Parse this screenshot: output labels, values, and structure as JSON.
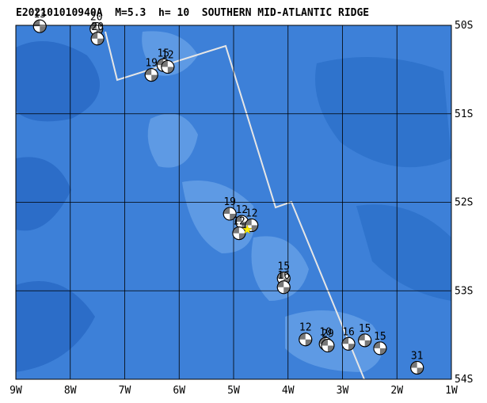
{
  "title": "E202101010940A  M=5.3  h= 10  SOUTHERN MID-ATLANTIC RIDGE",
  "map": {
    "xlim": [
      -9,
      -1
    ],
    "ylim": [
      -54,
      -50
    ],
    "xticks": [
      {
        "value": -9,
        "label": "9W"
      },
      {
        "value": -8,
        "label": "8W"
      },
      {
        "value": -7,
        "label": "7W"
      },
      {
        "value": -6,
        "label": "6W"
      },
      {
        "value": -5,
        "label": "5W"
      },
      {
        "value": -4,
        "label": "4W"
      },
      {
        "value": -3,
        "label": "3W"
      },
      {
        "value": -2,
        "label": "2W"
      },
      {
        "value": -1,
        "label": "1W"
      }
    ],
    "yticks": [
      {
        "value": -50,
        "label": "50S"
      },
      {
        "value": -51,
        "label": "51S"
      },
      {
        "value": -52,
        "label": "52S"
      },
      {
        "value": -53,
        "label": "53S"
      },
      {
        "value": -54,
        "label": "54S"
      }
    ],
    "events": [
      {
        "lon": -8.56,
        "lat": -50.01,
        "depth": 13
      },
      {
        "lon": -7.52,
        "lat": -50.04,
        "depth": 20
      },
      {
        "lon": -7.5,
        "lat": -50.15,
        "depth": 20
      },
      {
        "lon": -6.51,
        "lat": -50.56,
        "depth": 19
      },
      {
        "lon": -6.29,
        "lat": -50.45,
        "depth": 15
      },
      {
        "lon": -6.21,
        "lat": -50.47,
        "depth": 12
      },
      {
        "lon": -5.07,
        "lat": -52.13,
        "depth": 19
      },
      {
        "lon": -4.85,
        "lat": -52.22,
        "depth": 12
      },
      {
        "lon": -4.67,
        "lat": -52.26,
        "depth": 12
      },
      {
        "lon": -4.9,
        "lat": -52.35,
        "depth": 12
      },
      {
        "lon": -4.08,
        "lat": -52.86,
        "depth": 15
      },
      {
        "lon": -4.08,
        "lat": -52.96,
        "depth": 16
      },
      {
        "lon": -3.68,
        "lat": -53.55,
        "depth": 12
      },
      {
        "lon": -3.31,
        "lat": -53.6,
        "depth": 10
      },
      {
        "lon": -3.27,
        "lat": -53.62,
        "depth": 29
      },
      {
        "lon": -2.89,
        "lat": -53.6,
        "depth": 16
      },
      {
        "lon": -2.59,
        "lat": -53.56,
        "depth": 15
      },
      {
        "lon": -2.31,
        "lat": -53.65,
        "depth": 15
      },
      {
        "lon": -1.63,
        "lat": -53.87,
        "depth": 31
      }
    ],
    "epicenter": {
      "lon": -4.75,
      "lat": -52.31
    }
  }
}
